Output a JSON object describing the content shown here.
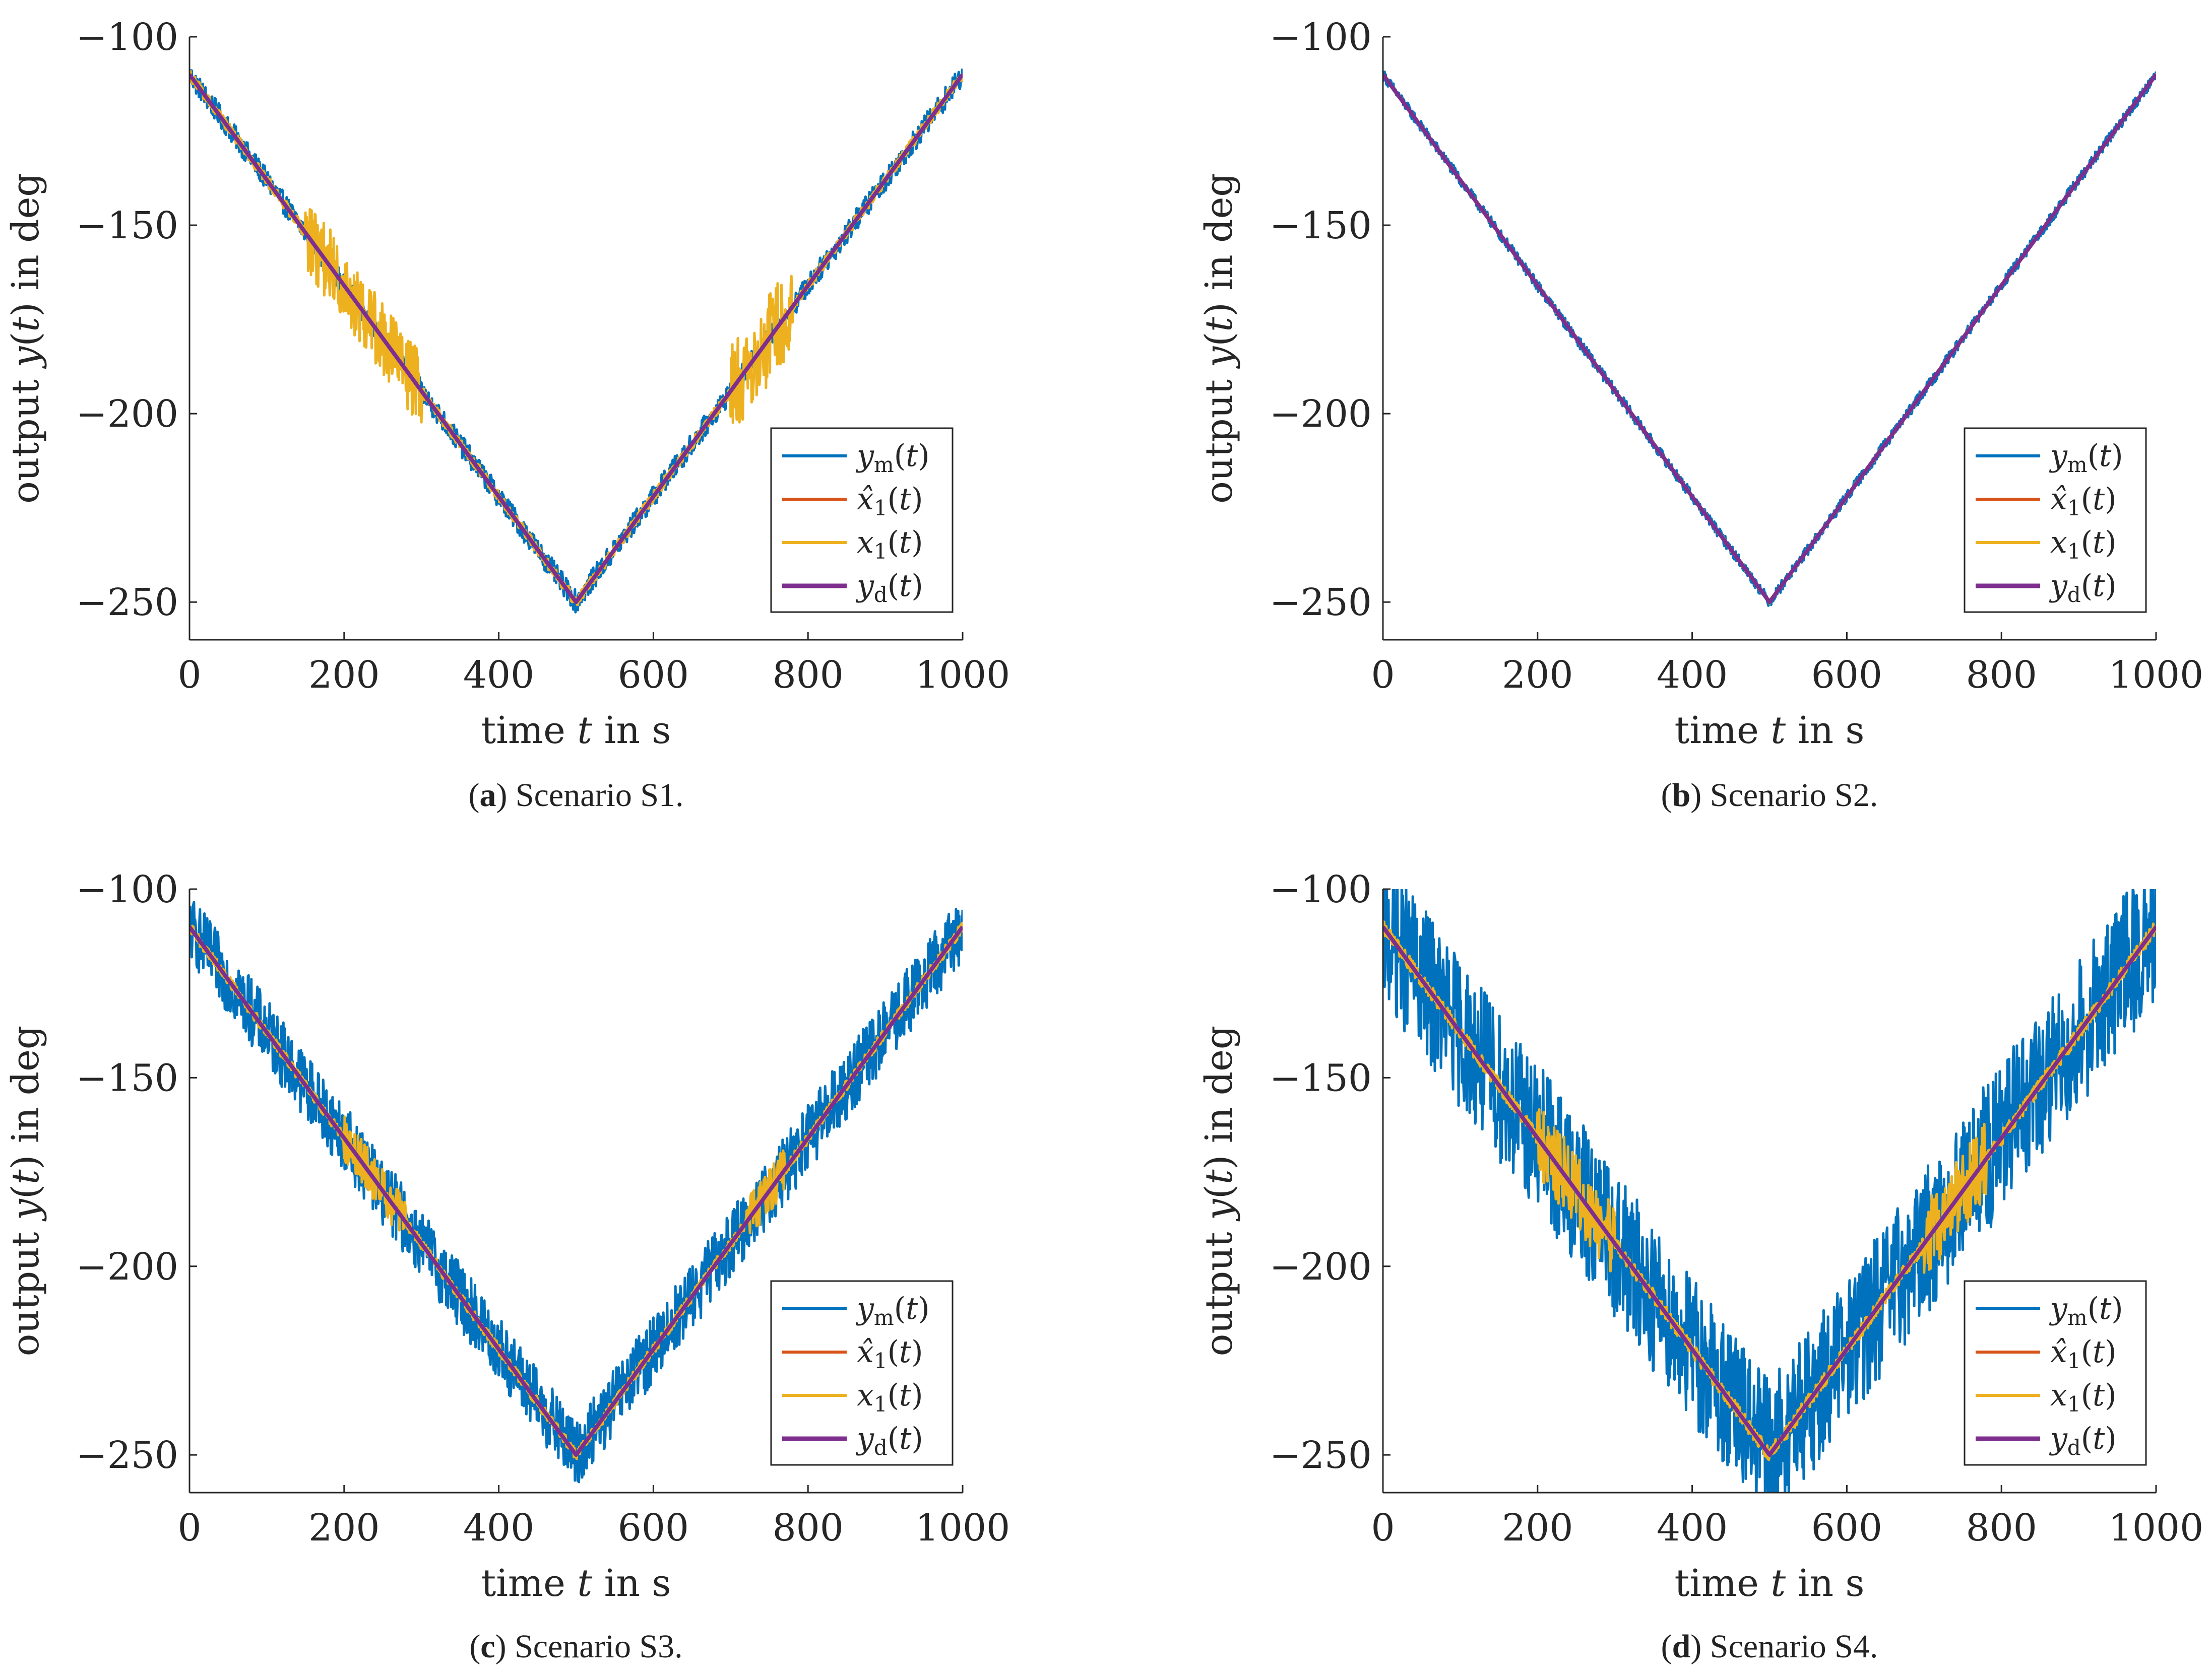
{
  "figure": {
    "legend_entries": [
      "y_m(t)",
      "x̂_1(t)",
      "x_1(t)",
      "y_d(t)"
    ],
    "series_colors": {
      "y_m": "#0072BD",
      "x_hat_1": "#D95319",
      "x_1": "#EDB120",
      "y_d": "#7E2F8E"
    }
  },
  "chart_data": [
    {
      "type": "line",
      "panel": "a",
      "caption": {
        "letter": "a",
        "text": "Scenario S1."
      },
      "xlabel": "time t in s",
      "ylabel": "output y(t) in deg",
      "xlim": [
        0,
        1000
      ],
      "ylim": [
        -260,
        -100
      ],
      "xticks": [
        0,
        200,
        400,
        600,
        800,
        1000
      ],
      "yticks": [
        -100,
        -150,
        -200,
        -250
      ],
      "legend": "bottom-right",
      "noise": {
        "y_m": 3,
        "x_1": 1.5,
        "x_1_bursts": [
          [
            150,
            300,
            10
          ],
          [
            700,
            780,
            12
          ]
        ]
      },
      "series": [
        {
          "name": "y_m(t)",
          "x": [
            0,
            500,
            1000
          ],
          "values": [
            -110,
            -250,
            -110
          ]
        },
        {
          "name": "x̂_1(t)",
          "x": [
            0,
            500,
            1000
          ],
          "values": [
            -110,
            -250,
            -110
          ]
        },
        {
          "name": "x_1(t)",
          "x": [
            0,
            500,
            1000
          ],
          "values": [
            -110,
            -250,
            -110
          ]
        },
        {
          "name": "y_d(t)",
          "x": [
            0,
            500,
            1000
          ],
          "values": [
            -110,
            -250,
            -110
          ]
        }
      ]
    },
    {
      "type": "line",
      "panel": "b",
      "caption": {
        "letter": "b",
        "text": "Scenario S2."
      },
      "xlabel": "time t in s",
      "ylabel": "output y(t) in deg",
      "xlim": [
        0,
        1000
      ],
      "ylim": [
        -260,
        -100
      ],
      "xticks": [
        0,
        200,
        400,
        600,
        800,
        1000
      ],
      "yticks": [
        -100,
        -150,
        -200,
        -250
      ],
      "legend": "bottom-right",
      "noise": {
        "y_m": 1.5,
        "x_1": 0.5,
        "x_1_bursts": []
      },
      "series": [
        {
          "name": "y_m(t)",
          "x": [
            0,
            500,
            1000
          ],
          "values": [
            -110,
            -250,
            -110
          ]
        },
        {
          "name": "x̂_1(t)",
          "x": [
            0,
            500,
            1000
          ],
          "values": [
            -110,
            -250,
            -110
          ]
        },
        {
          "name": "x_1(t)",
          "x": [
            0,
            500,
            1000
          ],
          "values": [
            -110,
            -250,
            -110
          ]
        },
        {
          "name": "y_d(t)",
          "x": [
            0,
            500,
            1000
          ],
          "values": [
            -110,
            -250,
            -110
          ]
        }
      ]
    },
    {
      "type": "line",
      "panel": "c",
      "caption": {
        "letter": "c",
        "text": "Scenario S3."
      },
      "xlabel": "time t in s",
      "ylabel": "output y(t) in deg",
      "xlim": [
        0,
        1000
      ],
      "ylim": [
        -260,
        -100
      ],
      "xticks": [
        0,
        200,
        400,
        600,
        800,
        1000
      ],
      "yticks": [
        -100,
        -150,
        -200,
        -250
      ],
      "legend": "bottom-right",
      "noise": {
        "y_m": 9,
        "x_1": 1.5,
        "x_1_bursts": [
          [
            200,
            280,
            6
          ],
          [
            720,
            770,
            6
          ]
        ]
      },
      "series": [
        {
          "name": "y_m(t)",
          "x": [
            0,
            500,
            1000
          ],
          "values": [
            -110,
            -250,
            -110
          ]
        },
        {
          "name": "x̂_1(t)",
          "x": [
            0,
            500,
            1000
          ],
          "values": [
            -110,
            -250,
            -110
          ]
        },
        {
          "name": "x_1(t)",
          "x": [
            0,
            500,
            1000
          ],
          "values": [
            -110,
            -250,
            -110
          ]
        },
        {
          "name": "y_d(t)",
          "x": [
            0,
            500,
            1000
          ],
          "values": [
            -110,
            -250,
            -110
          ]
        }
      ]
    },
    {
      "type": "line",
      "panel": "d",
      "caption": {
        "letter": "d",
        "text": "Scenario S4."
      },
      "xlabel": "time t in s",
      "ylabel": "output y(t) in deg",
      "xlim": [
        0,
        1000
      ],
      "ylim": [
        -260,
        -100
      ],
      "xticks": [
        0,
        200,
        400,
        600,
        800,
        1000
      ],
      "yticks": [
        -100,
        -150,
        -200,
        -250
      ],
      "legend": "bottom-right",
      "noise": {
        "y_m": 20,
        "x_1": 2,
        "x_1_bursts": [
          [
            200,
            300,
            10
          ],
          [
            700,
            780,
            10
          ]
        ]
      },
      "series": [
        {
          "name": "y_m(t)",
          "x": [
            0,
            500,
            1000
          ],
          "values": [
            -110,
            -250,
            -110
          ]
        },
        {
          "name": "x̂_1(t)",
          "x": [
            0,
            500,
            1000
          ],
          "values": [
            -110,
            -250,
            -110
          ]
        },
        {
          "name": "x_1(t)",
          "x": [
            0,
            500,
            1000
          ],
          "values": [
            -110,
            -250,
            -110
          ]
        },
        {
          "name": "y_d(t)",
          "x": [
            0,
            500,
            1000
          ],
          "values": [
            -110,
            -250,
            -110
          ]
        }
      ]
    }
  ]
}
